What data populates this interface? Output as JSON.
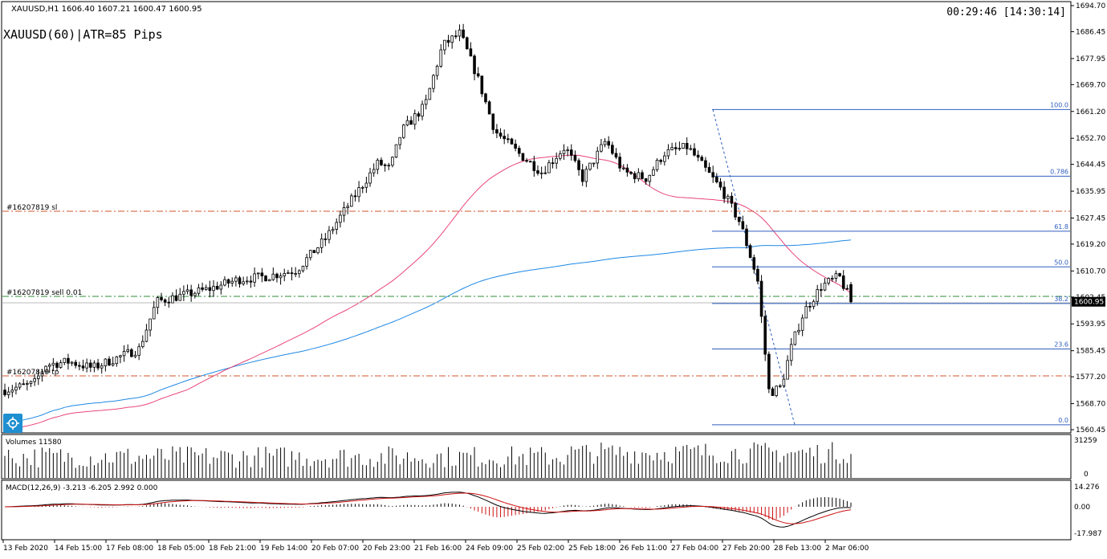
{
  "header": {
    "symbol_info": "XAUUSD,H1  1606.40 1607.21 1600.47 1600.95",
    "indicator_label": "XAUUSD(60)|ATR=85 Pips",
    "clock": "00:29:46 [14:30:14]"
  },
  "price_axis": {
    "ticks": [
      "1694.70",
      "1686.45",
      "1677.95",
      "1669.70",
      "1661.20",
      "1652.70",
      "1644.45",
      "1635.95",
      "1627.45",
      "1619.20",
      "1610.70",
      "1602.45",
      "1593.95",
      "1585.45",
      "1577.20",
      "1568.70",
      "1560.45"
    ],
    "current_price": "1600.95"
  },
  "order_lines": {
    "sl_label": "#16207819 sl",
    "sell_label": "#16207819 sell 0.01",
    "tp_label": "#16207819 tp"
  },
  "fib_levels": [
    "100.0",
    "0.786",
    "61.8",
    "50.0",
    "38.2",
    "23.6",
    "0.0"
  ],
  "volume_panel": {
    "label": "Volumes 11580",
    "axis_ticks": [
      "31259",
      "0"
    ]
  },
  "macd_panel": {
    "label": "MACD(12,26,9) -3.213 -6.205 2.992 0.000",
    "axis_ticks": [
      "14.276",
      "0.00",
      "-17.987"
    ]
  },
  "time_axis": {
    "labels": [
      "13 Feb 2020",
      "14 Feb 15:00",
      "17 Feb 08:00",
      "18 Feb 05:00",
      "18 Feb 21:00",
      "19 Feb 14:00",
      "20 Feb 07:00",
      "20 Feb 23:00",
      "21 Feb 16:00",
      "24 Feb 09:00",
      "25 Feb 02:00",
      "25 Feb 18:00",
      "26 Feb 11:00",
      "27 Feb 04:00",
      "27 Feb 20:00",
      "28 Feb 13:00",
      "2 Mar 06:00"
    ]
  },
  "colors": {
    "bull": "#000000",
    "ma_fast": "#e8457a",
    "ma_slow": "#1e88e5",
    "fib": "#2f5fbf",
    "order_sl": "#d2552a",
    "order_entry": "#2e8b3a",
    "macd_signal": "#cc1111",
    "target_button": "#1e8fd0"
  }
}
